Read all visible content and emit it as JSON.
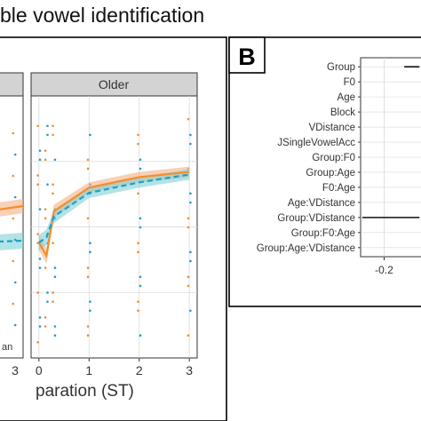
{
  "figure_title": "ble vowel identification",
  "colors": {
    "series_a": "#f28e2b",
    "series_b": "#1f9ec9",
    "series_a_ribbon": "#f4b183",
    "series_b_ribbon": "#7fd1d6",
    "grid": "#d9d9d9",
    "strip": "#d3d3d3"
  },
  "chart_data": [
    {
      "panel_id": "A",
      "type": "line",
      "facet": "Older",
      "xlabel": "paration (ST)",
      "x_ticks": [
        0,
        1,
        2,
        3
      ],
      "x_tick_labels": [
        "0",
        "1",
        "2",
        "3"
      ],
      "left_facet_tick_label": "3",
      "legend_fragment": "an",
      "xlim": [
        -0.05,
        3.05
      ],
      "ylim": [
        0,
        1
      ],
      "series": [
        {
          "color_key": "series_a",
          "x": [
            0,
            0.15,
            0.3,
            1,
            2,
            3
          ],
          "y": [
            0.44,
            0.39,
            0.56,
            0.65,
            0.69,
            0.71
          ],
          "band": [
            0.03,
            0.03,
            0.025,
            0.02,
            0.02,
            0.02
          ]
        },
        {
          "color_key": "series_b",
          "x": [
            0,
            0.15,
            0.3,
            1,
            2,
            3
          ],
          "y": [
            0.44,
            0.46,
            0.54,
            0.63,
            0.67,
            0.7
          ],
          "band": [
            0.03,
            0.03,
            0.025,
            0.02,
            0.02,
            0.02
          ]
        }
      ]
    },
    {
      "panel_id": "B",
      "type": "scatter",
      "terms": [
        "Group",
        "F0",
        "Age",
        "Block",
        "VDistance",
        "JSingleVowelAcc",
        "Group:F0",
        "Group:Age",
        "F0:Age",
        "Age:VDistance",
        "Group:VDistance",
        "Group:F0:Age",
        "Group:Age:VDistance"
      ],
      "x_ticks": [
        -0.2
      ],
      "x_tick_labels": [
        "-0.2"
      ],
      "xlim": [
        -0.34,
        0.03
      ],
      "segments": [
        {
          "term": "Group",
          "low": -0.08,
          "high": 0.01
        },
        {
          "term": "Group:VDistance",
          "low": -0.33,
          "high": 0.01
        }
      ]
    }
  ]
}
